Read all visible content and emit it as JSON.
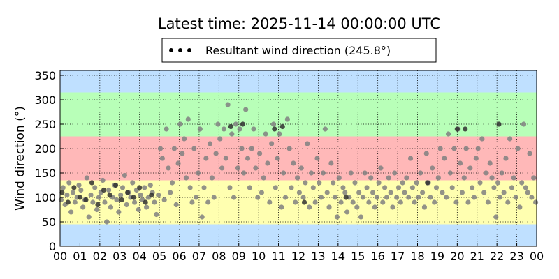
{
  "chart_data": {
    "type": "scatter",
    "title": "Latest time: 2025-11-14 00:00:00 UTC",
    "xlabel": "",
    "ylabel": "Wind direction (°)",
    "xlim": [
      0,
      24
    ],
    "ylim": [
      0,
      360
    ],
    "x_ticks": [
      0,
      1,
      2,
      3,
      4,
      5,
      6,
      7,
      8,
      9,
      10,
      11,
      12,
      13,
      14,
      15,
      16,
      17,
      18,
      19,
      20,
      21,
      22,
      23,
      24
    ],
    "x_tick_labels": [
      "00",
      "01",
      "02",
      "03",
      "04",
      "05",
      "06",
      "07",
      "08",
      "09",
      "10",
      "11",
      "12",
      "13",
      "14",
      "15",
      "16",
      "17",
      "18",
      "19",
      "20",
      "21",
      "22",
      "23",
      "00"
    ],
    "y_ticks": [
      0,
      50,
      100,
      150,
      200,
      250,
      300,
      350
    ],
    "y_tick_labels": [
      "0",
      "50",
      "100",
      "150",
      "200",
      "250",
      "300",
      "350"
    ],
    "grid": true,
    "legend": {
      "placement": "top-center",
      "entries": [
        "Resultant wind direction (245.8°)"
      ]
    },
    "background_bands": [
      {
        "from": 0,
        "to": 45,
        "color": "#bfe0ff"
      },
      {
        "from": 45,
        "to": 135,
        "color": "#ffffb0"
      },
      {
        "from": 135,
        "to": 225,
        "color": "#ffb8b8"
      },
      {
        "from": 225,
        "to": 315,
        "color": "#b8ffb8"
      },
      {
        "from": 315,
        "to": 360,
        "color": "#bfe0ff"
      }
    ],
    "series": [
      {
        "name": "Resultant wind direction (245.8°)",
        "color": "#808080",
        "x": [
          0.05,
          0.15,
          0.25,
          0.35,
          0.45,
          0.55,
          0.65,
          0.75,
          0.85,
          0.95,
          1.05,
          1.15,
          1.25,
          1.35,
          1.45,
          1.55,
          1.65,
          1.75,
          1.85,
          1.95,
          2.05,
          2.15,
          2.25,
          2.35,
          2.45,
          2.55,
          2.65,
          2.75,
          2.85,
          2.95,
          3.05,
          3.15,
          3.25,
          3.35,
          3.45,
          3.55,
          3.65,
          3.75,
          3.85,
          3.95,
          4.05,
          4.15,
          4.25,
          4.35,
          4.45,
          4.55,
          4.65,
          4.75,
          4.85,
          4.95,
          5.05,
          5.15,
          5.25,
          5.35,
          5.45,
          5.55,
          5.65,
          5.75,
          5.85,
          5.95,
          6.05,
          6.15,
          6.25,
          6.35,
          6.45,
          6.55,
          6.65,
          6.75,
          6.85,
          6.95,
          7.05,
          7.15,
          7.25,
          7.35,
          7.45,
          7.55,
          7.65,
          7.75,
          7.85,
          7.95,
          8.05,
          8.15,
          8.25,
          8.35,
          8.45,
          8.55,
          8.65,
          8.75,
          8.85,
          8.95,
          9.05,
          9.15,
          9.25,
          9.35,
          9.45,
          9.55,
          9.65,
          9.75,
          9.85,
          9.95,
          10.05,
          10.15,
          10.25,
          10.35,
          10.45,
          10.55,
          10.65,
          10.75,
          10.85,
          10.95,
          11.05,
          11.15,
          11.25,
          11.35,
          11.45,
          11.55,
          11.65,
          11.75,
          11.85,
          11.95,
          12.05,
          12.15,
          12.25,
          12.35,
          12.45,
          12.55,
          12.65,
          12.75,
          12.85,
          12.95,
          13.05,
          13.15,
          13.25,
          13.35,
          13.45,
          13.55,
          13.65,
          13.75,
          13.85,
          13.95,
          14.05,
          14.15,
          14.25,
          14.35,
          14.45,
          14.55,
          14.65,
          14.75,
          14.85,
          14.95,
          15.05,
          15.15,
          15.25,
          15.35,
          15.45,
          15.55,
          15.65,
          15.75,
          15.85,
          15.95,
          16.05,
          16.15,
          16.25,
          16.35,
          16.45,
          16.55,
          16.65,
          16.75,
          16.85,
          16.95,
          17.05,
          17.15,
          17.25,
          17.35,
          17.45,
          17.55,
          17.65,
          17.75,
          17.85,
          17.95,
          18.05,
          18.15,
          18.25,
          18.35,
          18.45,
          18.55,
          18.65,
          18.75,
          18.85,
          18.95,
          19.05,
          19.15,
          19.25,
          19.35,
          19.45,
          19.55,
          19.65,
          19.75,
          19.85,
          19.95,
          20.05,
          20.15,
          20.25,
          20.35,
          20.45,
          20.55,
          20.65,
          20.75,
          20.85,
          20.95,
          21.05,
          21.15,
          21.25,
          21.35,
          21.45,
          21.55,
          21.65,
          21.75,
          21.85,
          21.95,
          22.05,
          22.15,
          22.25,
          22.35,
          22.45,
          22.55,
          22.65,
          22.75,
          22.85,
          22.95,
          23.05,
          23.15,
          23.25,
          23.35,
          23.45,
          23.55,
          23.65,
          23.75,
          23.85,
          23.95
        ],
        "y": [
          95,
          120,
          85,
          105,
          130,
          70,
          110,
          90,
          100,
          125,
          115,
          80,
          95,
          140,
          60,
          105,
          90,
          120,
          75,
          100,
          110,
          135,
          90,
          50,
          115,
          80,
          100,
          125,
          95,
          70,
          105,
          120,
          145,
          85,
          110,
          100,
          130,
          90,
          115,
          75,
          105,
          95,
          120,
          80,
          100,
          125,
          110,
          90,
          65,
          105,
          200,
          180,
          95,
          240,
          160,
          110,
          130,
          200,
          85,
          170,
          250,
          190,
          220,
          140,
          260,
          120,
          90,
          200,
          100,
          150,
          240,
          60,
          120,
          180,
          90,
          210,
          140,
          100,
          190,
          250,
          220,
          160,
          240,
          180,
          290,
          120,
          230,
          100,
          250,
          160,
          240,
          200,
          150,
          280,
          180,
          120,
          200,
          240,
          160,
          100,
          190,
          110,
          140,
          230,
          170,
          90,
          210,
          250,
          120,
          180,
          230,
          80,
          150,
          100,
          260,
          200,
          120,
          170,
          90,
          140,
          110,
          160,
          100,
          130,
          210,
          80,
          150,
          120,
          90,
          180,
          130,
          100,
          150,
          240,
          110,
          80,
          170,
          130,
          100,
          60,
          140,
          90,
          120,
          110,
          70,
          100,
          150,
          90,
          130,
          80,
          110,
          60,
          100,
          150,
          120,
          90,
          140,
          110,
          80,
          100,
          130,
          160,
          90,
          120,
          100,
          140,
          110,
          80,
          150,
          100,
          120,
          90,
          130,
          110,
          140,
          100,
          180,
          120,
          90,
          130,
          100,
          150,
          110,
          80,
          190,
          130,
          100,
          160,
          90,
          120,
          140,
          200,
          110,
          180,
          100,
          230,
          150,
          120,
          200,
          90,
          240,
          170,
          110,
          140,
          200,
          90,
          160,
          120,
          100,
          180,
          200,
          130,
          220,
          110,
          150,
          90,
          170,
          140,
          120,
          60,
          130,
          100,
          150,
          110,
          180,
          90,
          220,
          120,
          140,
          100,
          200,
          80,
          130,
          250,
          120,
          110,
          190,
          100,
          140,
          90
        ]
      },
      {
        "name": "",
        "color": "#303030",
        "x": [
          0.1,
          0.4,
          0.7,
          1.0,
          1.3,
          1.6,
          1.9,
          2.2,
          2.5,
          2.8,
          3.1,
          3.4,
          3.7,
          4.0,
          4.3,
          4.6,
          8.6,
          9.2,
          10.8,
          11.2,
          12.3,
          14.4,
          18.5,
          20.0,
          20.4,
          22.1
        ],
        "y": [
          110,
          90,
          120,
          100,
          95,
          130,
          85,
          115,
          105,
          125,
          95,
          110,
          100,
          120,
          90,
          105,
          245,
          250,
          240,
          245,
          90,
          100,
          130,
          240,
          240,
          250
        ]
      }
    ]
  }
}
